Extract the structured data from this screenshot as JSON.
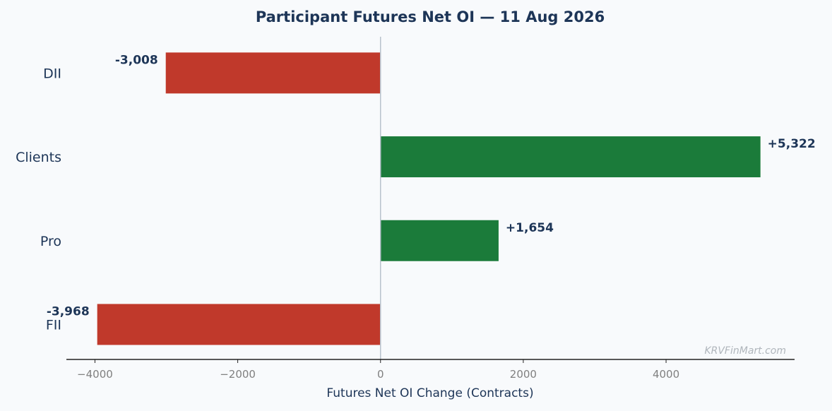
{
  "chart_data": {
    "type": "bar",
    "orientation": "horizontal",
    "title": "Participant Futures Net OI — 11 Aug 2026",
    "xlabel": "Futures Net OI Change (Contracts)",
    "ylabel": "",
    "xlim": [
      -4400,
      5800
    ],
    "xticks": [
      -4000,
      -2000,
      0,
      2000,
      4000
    ],
    "xtick_labels": [
      "−4000",
      "−2000",
      "0",
      "2000",
      "4000"
    ],
    "categories": [
      "DII",
      "Clients",
      "Pro",
      "FII"
    ],
    "values": [
      -3008,
      5322,
      1654,
      -3968
    ],
    "data_labels": [
      "-3,008",
      "+5,322",
      "+1,654",
      "-3,968"
    ],
    "grid": false,
    "legend": "none",
    "colors": {
      "positive": "#1b7b3a",
      "negative": "#c0392b",
      "text": "#1d3557",
      "tick_text": "#808080",
      "zero_line": "#b8c2cc",
      "axis_line": "#222222",
      "watermark": "#b0b6bc",
      "background": "#f8fafc"
    }
  },
  "watermark": "KRVFinMart.com"
}
